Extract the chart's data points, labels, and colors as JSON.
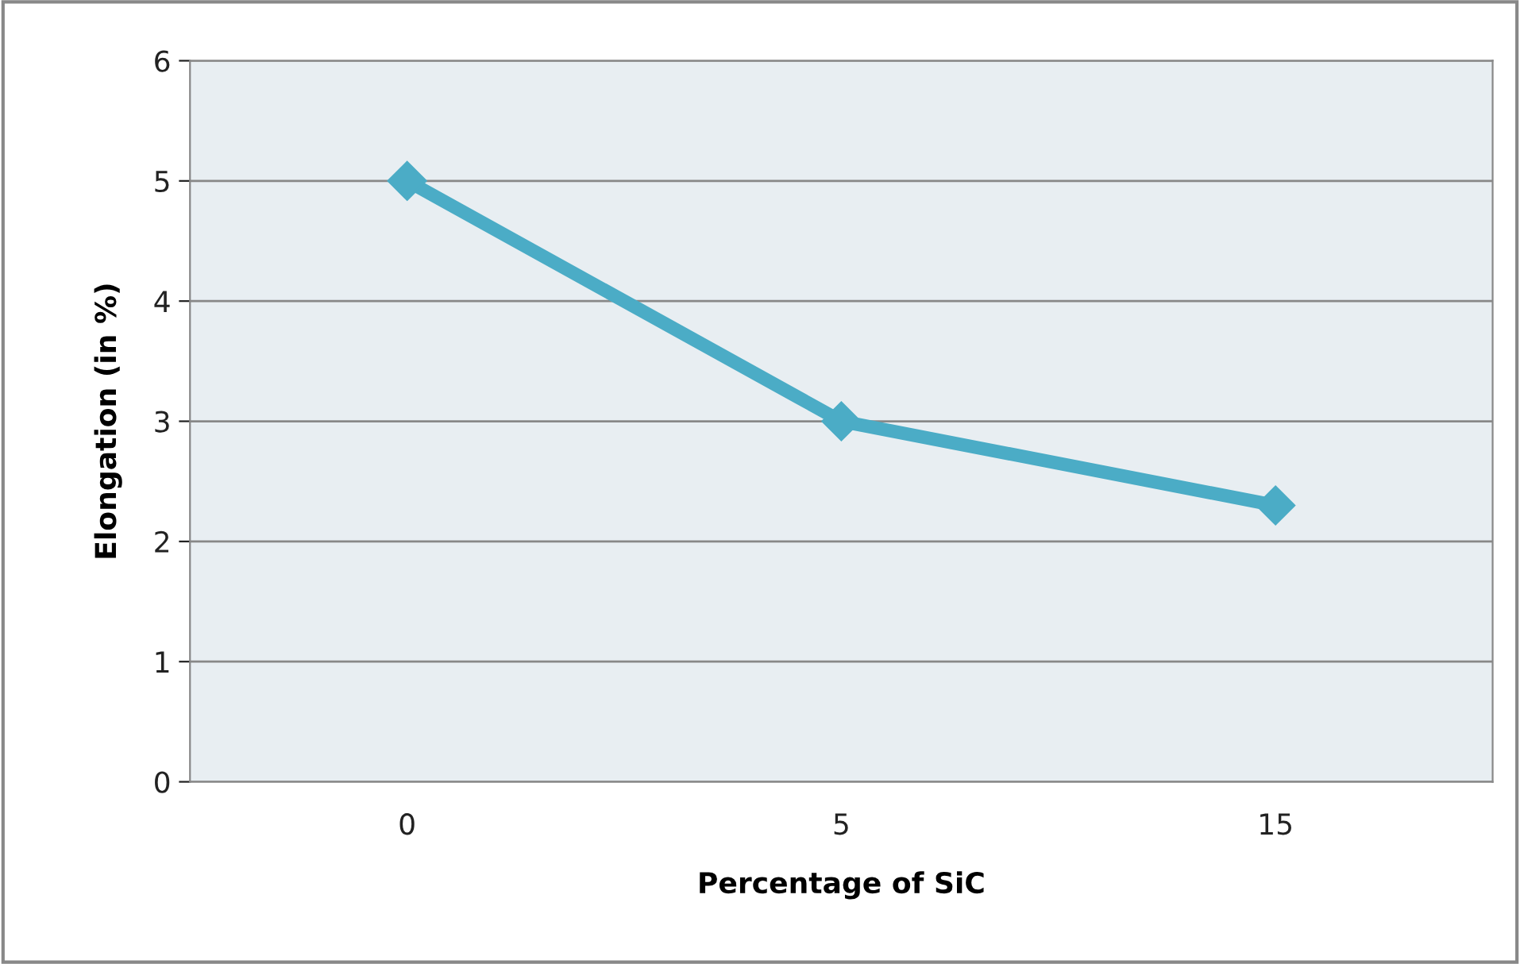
{
  "chart_data": {
    "type": "line",
    "xlabel": "Percentage of SiC",
    "ylabel": "Elongation (in %)",
    "categories": [
      "0",
      "5",
      "15"
    ],
    "series": [
      {
        "color": "#4bacc6",
        "values": [
          5,
          3,
          2.3
        ]
      }
    ],
    "ylim": [
      0,
      6
    ],
    "yticks": [
      0,
      1,
      2,
      3,
      4,
      5,
      6
    ],
    "grid": "y",
    "marker": "diamond",
    "line_style": "solid",
    "legend": false
  }
}
